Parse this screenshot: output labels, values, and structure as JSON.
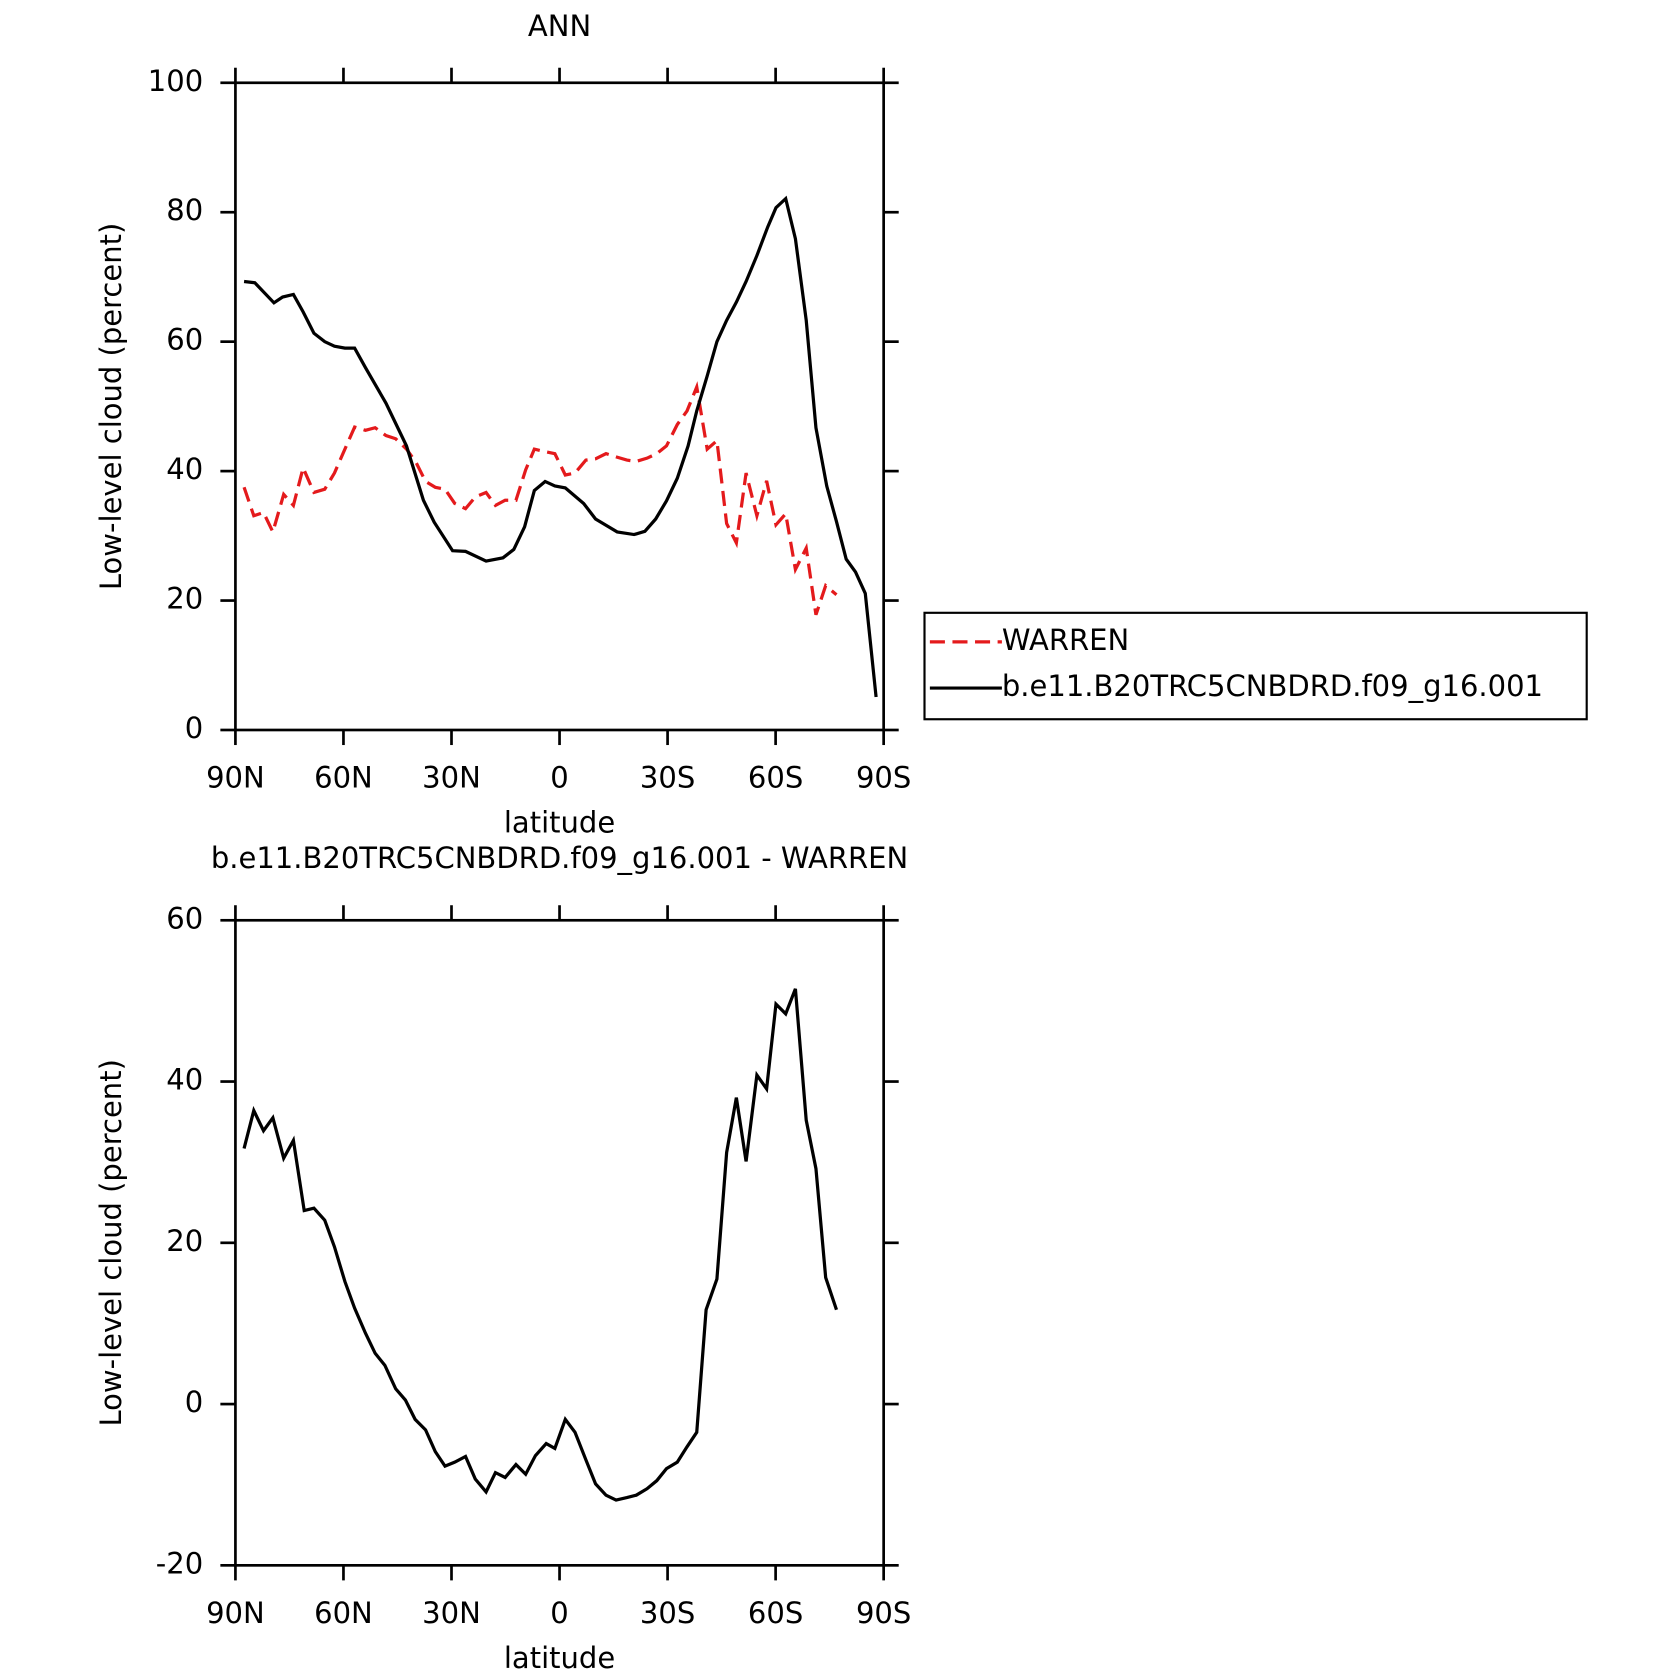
{
  "chart_data": [
    {
      "type": "line",
      "title": "ANN",
      "xlabel": "latitude",
      "ylabel": "Low-level cloud (percent)",
      "xlim": [
        90,
        -90
      ],
      "xticks": [
        {
          "value": 90,
          "label": "90N"
        },
        {
          "value": 60,
          "label": "60N"
        },
        {
          "value": 30,
          "label": "30N"
        },
        0,
        {
          "value": -30,
          "label": "30S"
        },
        {
          "value": -60,
          "label": "60S"
        },
        {
          "value": -90,
          "label": "90S"
        }
      ],
      "ylim": [
        0,
        100
      ],
      "yticks": [
        0,
        20,
        40,
        60,
        80,
        100
      ],
      "legend": "right",
      "series": [
        {
          "name": "WARREN",
          "color": "#e41a1c",
          "dash": true,
          "x": [
            87.6,
            84.9,
            82.2,
            79.6,
            76.6,
            73.9,
            71.2,
            68.2,
            65.2,
            62.5,
            59.6,
            56.9,
            53.9,
            51.2,
            48.2,
            45.5,
            42.5,
            39.9,
            37.2,
            34.5,
            31.8,
            29.1,
            26.1,
            23.4,
            20.4,
            17.8,
            15.1,
            12.1,
            9.4,
            7.0,
            4.0,
            1.3,
            -1.6,
            -4.3,
            -7.3,
            -10.0,
            -12.9,
            -15.7,
            -18.7,
            -21.3,
            -24.3,
            -27.0,
            -29.7,
            -32.7,
            -35.4,
            -38.1,
            -41.0,
            -43.7,
            -46.4,
            -49.1,
            -51.8,
            -54.8,
            -57.5,
            -60.1,
            -62.8,
            -65.5,
            -68.5,
            -71.2,
            -73.9,
            -76.9
          ],
          "values": [
            37.5,
            33.1,
            33.6,
            30.6,
            36.4,
            34.7,
            40.5,
            36.7,
            37.2,
            39.7,
            43.4,
            46.8,
            46.3,
            46.7,
            45.5,
            45.0,
            43.4,
            41.4,
            38.4,
            37.5,
            37.2,
            35.0,
            34.2,
            36.0,
            36.7,
            34.7,
            35.5,
            35.5,
            40.2,
            43.4,
            43.0,
            42.7,
            39.4,
            39.7,
            41.7,
            41.9,
            42.7,
            42.2,
            41.7,
            41.5,
            42.0,
            42.7,
            43.9,
            47.2,
            49.3,
            53.0,
            43.4,
            44.7,
            31.9,
            28.9,
            39.7,
            33.1,
            38.5,
            31.7,
            33.4,
            24.8,
            28.1,
            17.8,
            22.3,
            20.9
          ]
        },
        {
          "name": "b.e11.B20TRC5CNBDRD.f09_g16.001",
          "color": "#000000",
          "dash": false,
          "x": [
            87.6,
            84.6,
            79.3,
            76.9,
            73.9,
            71.2,
            68.2,
            65.2,
            62.5,
            59.6,
            56.9,
            53.9,
            48.2,
            42.5,
            37.8,
            34.8,
            29.7,
            26.1,
            20.4,
            15.7,
            12.7,
            9.7,
            7.0,
            4.0,
            1.3,
            -1.6,
            -6.7,
            -10.0,
            -13.6,
            -16.0,
            -20.7,
            -23.7,
            -26.7,
            -29.7,
            -32.7,
            -35.7,
            -38.1,
            -41.0,
            -43.7,
            -46.4,
            -49.1,
            -51.8,
            -54.8,
            -57.8,
            -60.1,
            -62.8,
            -65.5,
            -68.5,
            -71.2,
            -74.2,
            -76.9,
            -79.6,
            -82.2,
            -84.9,
            -87.9
          ],
          "values": [
            69.3,
            69.1,
            66.0,
            66.9,
            67.3,
            64.6,
            61.3,
            60.0,
            59.3,
            59.0,
            59.0,
            56.0,
            50.5,
            43.9,
            35.5,
            32.1,
            27.7,
            27.6,
            26.1,
            26.6,
            27.9,
            31.4,
            37.0,
            38.4,
            37.7,
            37.4,
            35.0,
            32.6,
            31.4,
            30.6,
            30.2,
            30.7,
            32.6,
            35.4,
            38.9,
            43.9,
            49.3,
            54.7,
            60.0,
            63.3,
            66.1,
            69.3,
            73.3,
            77.7,
            80.7,
            82.1,
            75.9,
            63.3,
            46.7,
            37.7,
            32.2,
            26.4,
            24.4,
            21.1,
            5.1
          ]
        }
      ]
    },
    {
      "type": "line",
      "title": "b.e11.B20TRC5CNBDRD.f09_g16.001 - WARREN",
      "xlabel": "latitude",
      "ylabel": "Low-level cloud (percent)",
      "xlim": [
        90,
        -90
      ],
      "xticks": [
        {
          "value": 90,
          "label": "90N"
        },
        {
          "value": 60,
          "label": "60N"
        },
        {
          "value": 30,
          "label": "30N"
        },
        0,
        {
          "value": -30,
          "label": "30S"
        },
        {
          "value": -60,
          "label": "60S"
        },
        {
          "value": -90,
          "label": "90S"
        }
      ],
      "ylim": [
        -20,
        60
      ],
      "yticks": [
        -20,
        0,
        20,
        40,
        60
      ],
      "series": [
        {
          "color": "#000000",
          "dash": false,
          "x": [
            87.6,
            84.9,
            82.2,
            79.6,
            76.6,
            73.9,
            70.9,
            68.2,
            65.2,
            62.5,
            59.6,
            56.9,
            53.9,
            51.2,
            48.5,
            45.5,
            42.8,
            40.1,
            37.2,
            34.5,
            31.8,
            29.1,
            26.1,
            23.4,
            20.4,
            17.8,
            15.1,
            12.1,
            9.4,
            6.7,
            3.7,
            1.3,
            -1.6,
            -4.3,
            -7.3,
            -10.0,
            -12.9,
            -15.7,
            -18.7,
            -21.3,
            -24.3,
            -27.0,
            -29.7,
            -32.7,
            -35.4,
            -38.1,
            -40.7,
            -43.7,
            -46.4,
            -49.1,
            -51.8,
            -54.8,
            -57.5,
            -60.1,
            -62.8,
            -65.5,
            -68.5,
            -71.2,
            -73.9,
            -76.9
          ],
          "values": [
            31.7,
            36.4,
            33.9,
            35.5,
            30.5,
            32.7,
            24.0,
            24.3,
            22.8,
            19.5,
            15.2,
            11.9,
            8.8,
            6.3,
            4.8,
            1.9,
            0.5,
            -1.9,
            -3.2,
            -5.9,
            -7.7,
            -7.2,
            -6.5,
            -9.3,
            -10.9,
            -8.5,
            -9.1,
            -7.5,
            -8.7,
            -6.4,
            -4.9,
            -5.5,
            -1.9,
            -3.5,
            -6.9,
            -9.9,
            -11.3,
            -11.9,
            -11.6,
            -11.3,
            -10.5,
            -9.5,
            -8.0,
            -7.2,
            -5.3,
            -3.5,
            11.7,
            15.5,
            31.2,
            38.0,
            30.1,
            40.8,
            39.1,
            49.6,
            48.4,
            51.5,
            35.2,
            29.2,
            15.7,
            11.7
          ]
        }
      ]
    }
  ]
}
